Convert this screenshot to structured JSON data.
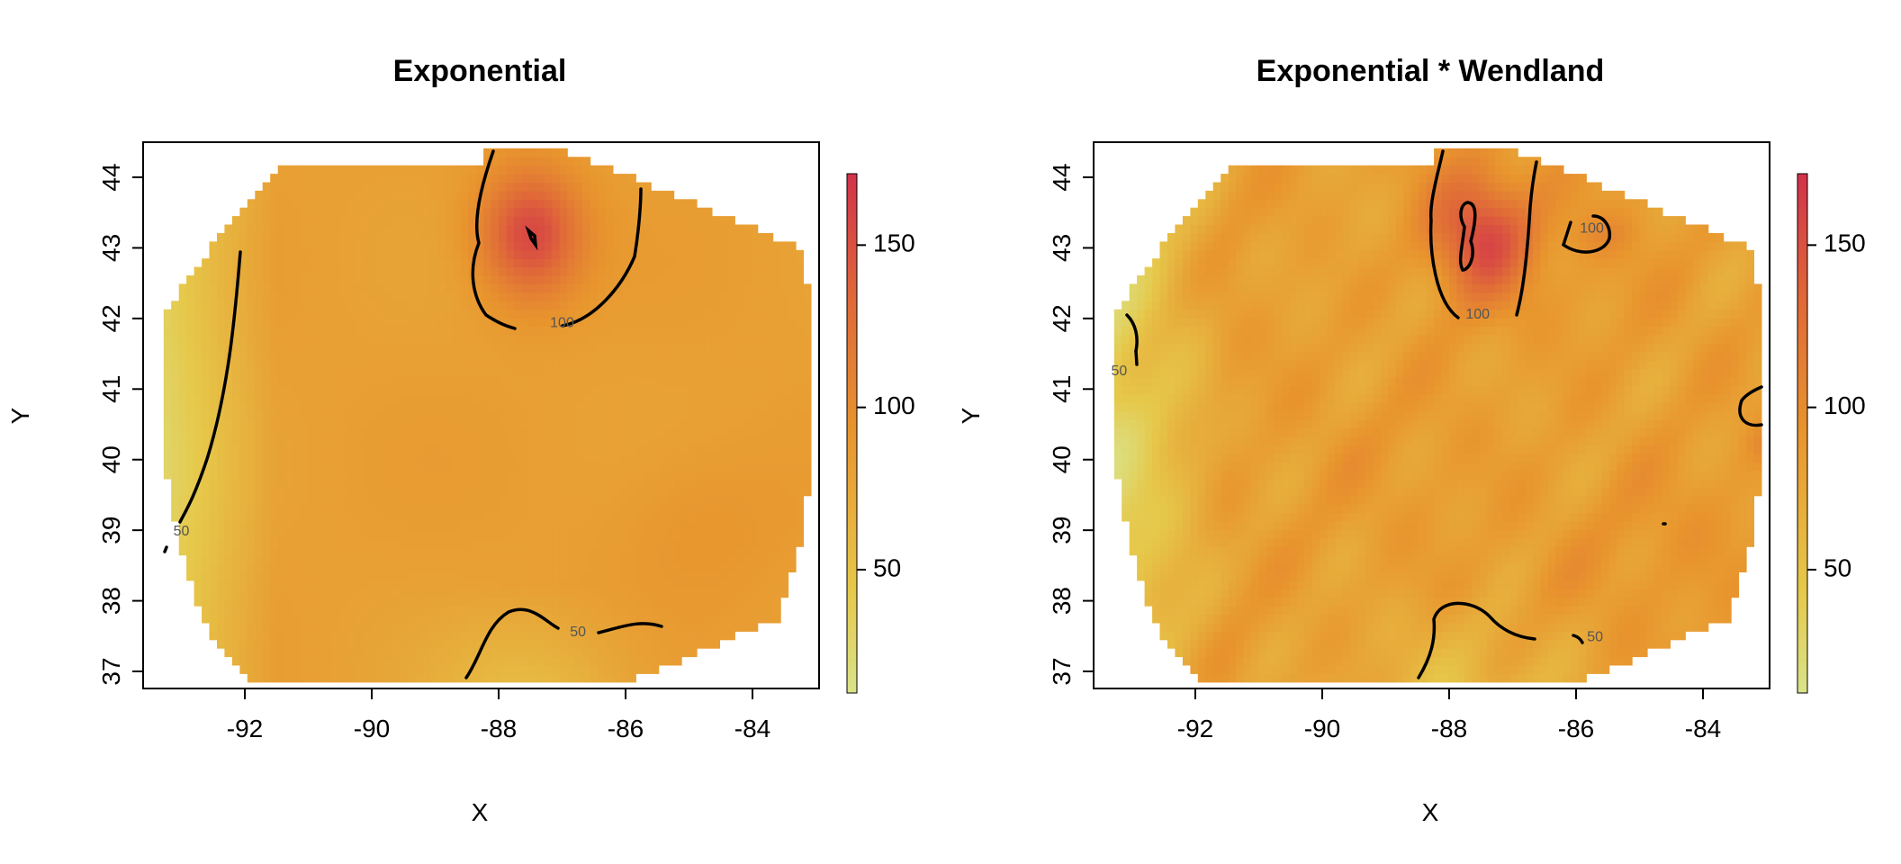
{
  "chart_data": [
    {
      "type": "heatmap",
      "title": "Exponential",
      "xlabel": "X",
      "ylabel": "Y",
      "xlim": [
        -93.6,
        -82.9
      ],
      "ylim": [
        36.75,
        44.45
      ],
      "xticks": [
        -92,
        -90,
        -88,
        -86,
        -84
      ],
      "yticks": [
        37,
        38,
        39,
        40,
        41,
        42,
        43,
        44
      ],
      "colorbar": {
        "range": [
          12,
          172
        ],
        "ticks": [
          50,
          100,
          150
        ],
        "low_color": "#d9e38a",
        "mid_color": "#e8952e",
        "high_color": "#d2324b"
      },
      "contour_labels": [
        {
          "text": "50",
          "x": -93.0,
          "y": 38.98
        },
        {
          "text": "100",
          "x": -87.0,
          "y": 41.93
        },
        {
          "text": "50",
          "x": -86.75,
          "y": 37.55
        }
      ]
    },
    {
      "type": "heatmap",
      "title": "Exponential * Wendland",
      "xlabel": "X",
      "ylabel": "Y",
      "xlim": [
        -93.6,
        -82.9
      ],
      "ylim": [
        36.75,
        44.45
      ],
      "xticks": [
        -92,
        -90,
        -88,
        -86,
        -84
      ],
      "yticks": [
        37,
        38,
        39,
        40,
        41,
        42,
        43,
        44
      ],
      "colorbar": {
        "range": [
          12,
          172
        ],
        "ticks": [
          50,
          100,
          150
        ],
        "low_color": "#d9e38a",
        "mid_color": "#e8952e",
        "high_color": "#d2324b"
      },
      "contour_labels": [
        {
          "text": "100",
          "x": -87.55,
          "y": 42.05
        },
        {
          "text": "100",
          "x": -85.75,
          "y": 43.27
        },
        {
          "text": "50",
          "x": -93.2,
          "y": 41.25
        },
        {
          "text": "50",
          "x": -85.7,
          "y": 37.48
        }
      ]
    }
  ]
}
